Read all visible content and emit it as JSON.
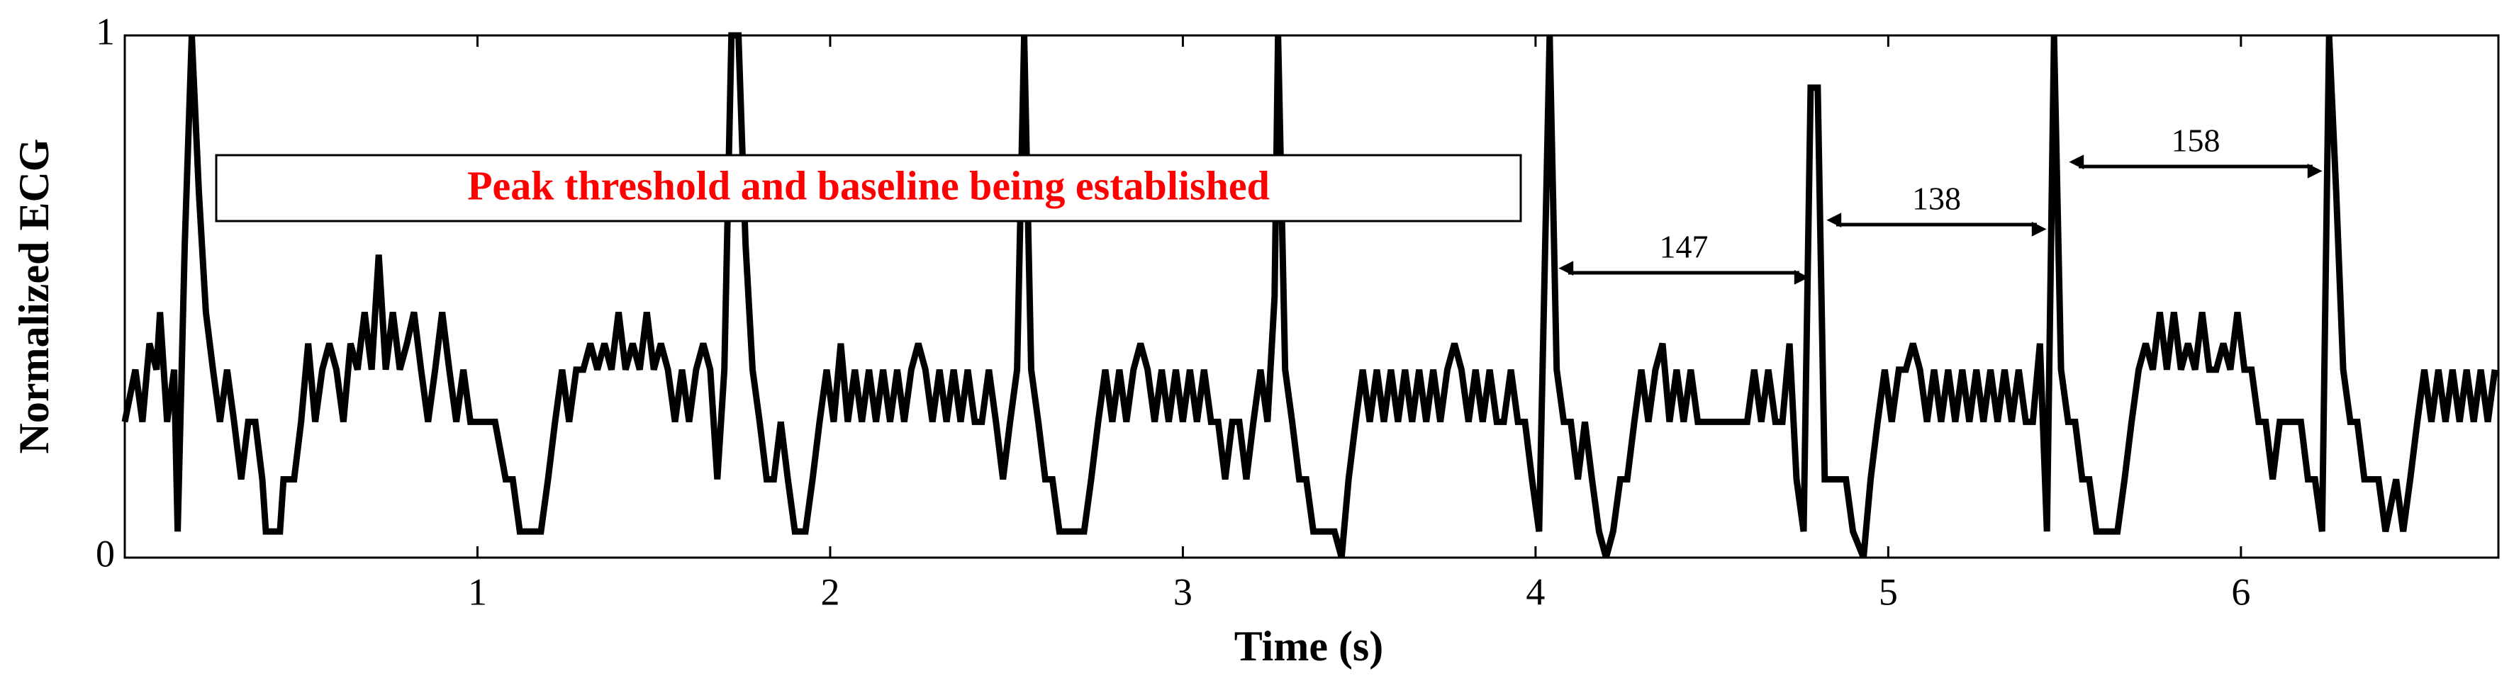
{
  "chart_data": {
    "type": "line",
    "xlabel": "Time (s)",
    "ylabel": "Normalized ECG",
    "color": "#000000",
    "xlim": [
      0,
      6.73
    ],
    "ylim": [
      0,
      1
    ],
    "xticks": [
      1,
      2,
      3,
      4,
      5,
      6
    ],
    "yticks": [
      0,
      1
    ],
    "annotations": [
      "Peak threshold and baseline being established",
      "147",
      "138",
      "158"
    ],
    "x": [
      0.0,
      0.03,
      0.05,
      0.07,
      0.09,
      0.1,
      0.12,
      0.14,
      0.15,
      0.17,
      0.19,
      0.21,
      0.23,
      0.25,
      0.27,
      0.29,
      0.31,
      0.33,
      0.35,
      0.37,
      0.39,
      0.4,
      0.44,
      0.45,
      0.48,
      0.5,
      0.52,
      0.54,
      0.56,
      0.58,
      0.6,
      0.62,
      0.64,
      0.66,
      0.68,
      0.7,
      0.72,
      0.74,
      0.76,
      0.78,
      0.8,
      0.82,
      0.84,
      0.86,
      0.88,
      0.9,
      0.92,
      0.94,
      0.96,
      0.98,
      1.0,
      1.05,
      1.08,
      1.1,
      1.12,
      1.18,
      1.2,
      1.22,
      1.24,
      1.26,
      1.28,
      1.3,
      1.32,
      1.34,
      1.36,
      1.38,
      1.4,
      1.42,
      1.44,
      1.46,
      1.48,
      1.5,
      1.52,
      1.54,
      1.56,
      1.58,
      1.6,
      1.62,
      1.64,
      1.66,
      1.68,
      1.7,
      1.72,
      1.74,
      1.76,
      1.78,
      1.8,
      1.82,
      1.84,
      1.86,
      1.88,
      1.9,
      1.93,
      1.95,
      1.97,
      1.99,
      2.01,
      2.03,
      2.05,
      2.07,
      2.09,
      2.11,
      2.13,
      2.15,
      2.17,
      2.19,
      2.21,
      2.23,
      2.25,
      2.27,
      2.29,
      2.31,
      2.33,
      2.35,
      2.37,
      2.39,
      2.41,
      2.43,
      2.45,
      2.47,
      2.49,
      2.51,
      2.53,
      2.55,
      2.57,
      2.59,
      2.61,
      2.63,
      2.65,
      2.72,
      2.74,
      2.76,
      2.78,
      2.8,
      2.82,
      2.84,
      2.86,
      2.88,
      2.9,
      2.92,
      2.94,
      2.96,
      2.98,
      3.0,
      3.02,
      3.04,
      3.06,
      3.08,
      3.1,
      3.12,
      3.14,
      3.16,
      3.18,
      3.2,
      3.22,
      3.24,
      3.26,
      3.27,
      3.29,
      3.31,
      3.33,
      3.35,
      3.37,
      3.43,
      3.45,
      3.47,
      3.49,
      3.51,
      3.53,
      3.55,
      3.57,
      3.59,
      3.61,
      3.63,
      3.65,
      3.67,
      3.69,
      3.71,
      3.73,
      3.75,
      3.77,
      3.79,
      3.81,
      3.83,
      3.85,
      3.87,
      3.89,
      3.91,
      3.93,
      3.95,
      3.97,
      3.99,
      4.01,
      4.04,
      4.06,
      4.08,
      4.1,
      4.12,
      4.14,
      4.16,
      4.18,
      4.2,
      4.22,
      4.24,
      4.26,
      4.28,
      4.3,
      4.32,
      4.34,
      4.36,
      4.38,
      4.4,
      4.42,
      4.44,
      4.46,
      4.5,
      4.55,
      4.6,
      4.62,
      4.64,
      4.66,
      4.68,
      4.7,
      4.72,
      4.74,
      4.76,
      4.78,
      4.8,
      4.82,
      4.84,
      4.86,
      4.88,
      4.9,
      4.93,
      4.95,
      4.97,
      4.99,
      5.01,
      5.03,
      5.05,
      5.07,
      5.09,
      5.11,
      5.13,
      5.15,
      5.17,
      5.19,
      5.21,
      5.23,
      5.25,
      5.27,
      5.29,
      5.31,
      5.33,
      5.35,
      5.37,
      5.39,
      5.41,
      5.43,
      5.45,
      5.47,
      5.49,
      5.51,
      5.53,
      5.55,
      5.57,
      5.59,
      5.65,
      5.67,
      5.69,
      5.71,
      5.73,
      5.75,
      5.77,
      5.79,
      5.81,
      5.83,
      5.85,
      5.87,
      5.89,
      5.91,
      5.93,
      5.95,
      5.97,
      5.99,
      6.01,
      6.03,
      6.05,
      6.07,
      6.09,
      6.11,
      6.13,
      6.15,
      6.17,
      6.19,
      6.21,
      6.23,
      6.25,
      6.27,
      6.29,
      6.31,
      6.33,
      6.35,
      6.37,
      6.39,
      6.41,
      6.44,
      6.46,
      6.48,
      6.5,
      6.52,
      6.54,
      6.56,
      6.58,
      6.6,
      6.62,
      6.64,
      6.66,
      6.68,
      6.7,
      6.72
    ],
    "values": [
      0.26,
      0.36,
      0.26,
      0.41,
      0.36,
      0.47,
      0.26,
      0.36,
      0.05,
      0.6,
      1.0,
      0.7,
      0.47,
      0.36,
      0.26,
      0.36,
      0.26,
      0.15,
      0.26,
      0.26,
      0.15,
      0.05,
      0.05,
      0.15,
      0.15,
      0.26,
      0.41,
      0.26,
      0.36,
      0.41,
      0.36,
      0.26,
      0.41,
      0.36,
      0.47,
      0.36,
      0.58,
      0.36,
      0.47,
      0.36,
      0.41,
      0.47,
      0.36,
      0.26,
      0.36,
      0.47,
      0.36,
      0.26,
      0.36,
      0.26,
      0.26,
      0.26,
      0.15,
      0.15,
      0.05,
      0.05,
      0.15,
      0.26,
      0.36,
      0.26,
      0.36,
      0.36,
      0.41,
      0.36,
      0.41,
      0.36,
      0.47,
      0.36,
      0.41,
      0.36,
      0.47,
      0.36,
      0.41,
      0.36,
      0.26,
      0.36,
      0.26,
      0.36,
      0.41,
      0.36,
      0.15,
      0.36,
      1.0,
      1.0,
      0.6,
      0.36,
      0.26,
      0.15,
      0.15,
      0.26,
      0.15,
      0.05,
      0.05,
      0.15,
      0.26,
      0.36,
      0.26,
      0.41,
      0.26,
      0.36,
      0.26,
      0.36,
      0.26,
      0.36,
      0.26,
      0.36,
      0.26,
      0.36,
      0.41,
      0.36,
      0.26,
      0.36,
      0.26,
      0.36,
      0.26,
      0.36,
      0.26,
      0.26,
      0.36,
      0.26,
      0.15,
      0.26,
      0.36,
      1.0,
      0.36,
      0.26,
      0.15,
      0.15,
      0.05,
      0.05,
      0.15,
      0.26,
      0.36,
      0.26,
      0.36,
      0.26,
      0.36,
      0.41,
      0.36,
      0.26,
      0.36,
      0.26,
      0.36,
      0.26,
      0.36,
      0.26,
      0.36,
      0.26,
      0.26,
      0.15,
      0.26,
      0.26,
      0.15,
      0.26,
      0.36,
      0.26,
      0.5,
      1.0,
      0.36,
      0.26,
      0.15,
      0.15,
      0.05,
      0.05,
      0.0,
      0.15,
      0.26,
      0.36,
      0.26,
      0.36,
      0.26,
      0.36,
      0.26,
      0.36,
      0.26,
      0.36,
      0.26,
      0.36,
      0.26,
      0.36,
      0.41,
      0.36,
      0.26,
      0.36,
      0.26,
      0.36,
      0.26,
      0.26,
      0.36,
      0.26,
      0.26,
      0.15,
      0.05,
      1.0,
      0.36,
      0.26,
      0.26,
      0.15,
      0.26,
      0.15,
      0.05,
      0.0,
      0.05,
      0.15,
      0.15,
      0.26,
      0.36,
      0.26,
      0.36,
      0.41,
      0.26,
      0.36,
      0.26,
      0.36,
      0.26,
      0.26,
      0.26,
      0.26,
      0.36,
      0.26,
      0.36,
      0.26,
      0.26,
      0.41,
      0.15,
      0.05,
      0.9,
      0.9,
      0.15,
      0.15,
      0.15,
      0.15,
      0.05,
      0.0,
      0.15,
      0.26,
      0.36,
      0.26,
      0.36,
      0.36,
      0.41,
      0.36,
      0.26,
      0.36,
      0.26,
      0.36,
      0.26,
      0.36,
      0.26,
      0.36,
      0.26,
      0.36,
      0.26,
      0.36,
      0.26,
      0.36,
      0.26,
      0.26,
      0.41,
      0.05,
      1.0,
      0.36,
      0.26,
      0.26,
      0.15,
      0.15,
      0.05,
      0.05,
      0.15,
      0.26,
      0.36,
      0.41,
      0.36,
      0.47,
      0.36,
      0.47,
      0.36,
      0.41,
      0.36,
      0.47,
      0.36,
      0.36,
      0.41,
      0.36,
      0.47,
      0.36,
      0.36,
      0.26,
      0.26,
      0.15,
      0.26,
      0.26,
      0.26,
      0.26,
      0.15,
      0.15,
      0.05,
      1.0,
      0.7,
      0.36,
      0.26,
      0.26,
      0.15,
      0.15,
      0.15,
      0.05,
      0.15,
      0.05,
      0.15,
      0.26,
      0.36,
      0.26,
      0.36,
      0.26,
      0.36,
      0.26,
      0.36,
      0.26,
      0.36,
      0.26,
      0.36
    ]
  }
}
